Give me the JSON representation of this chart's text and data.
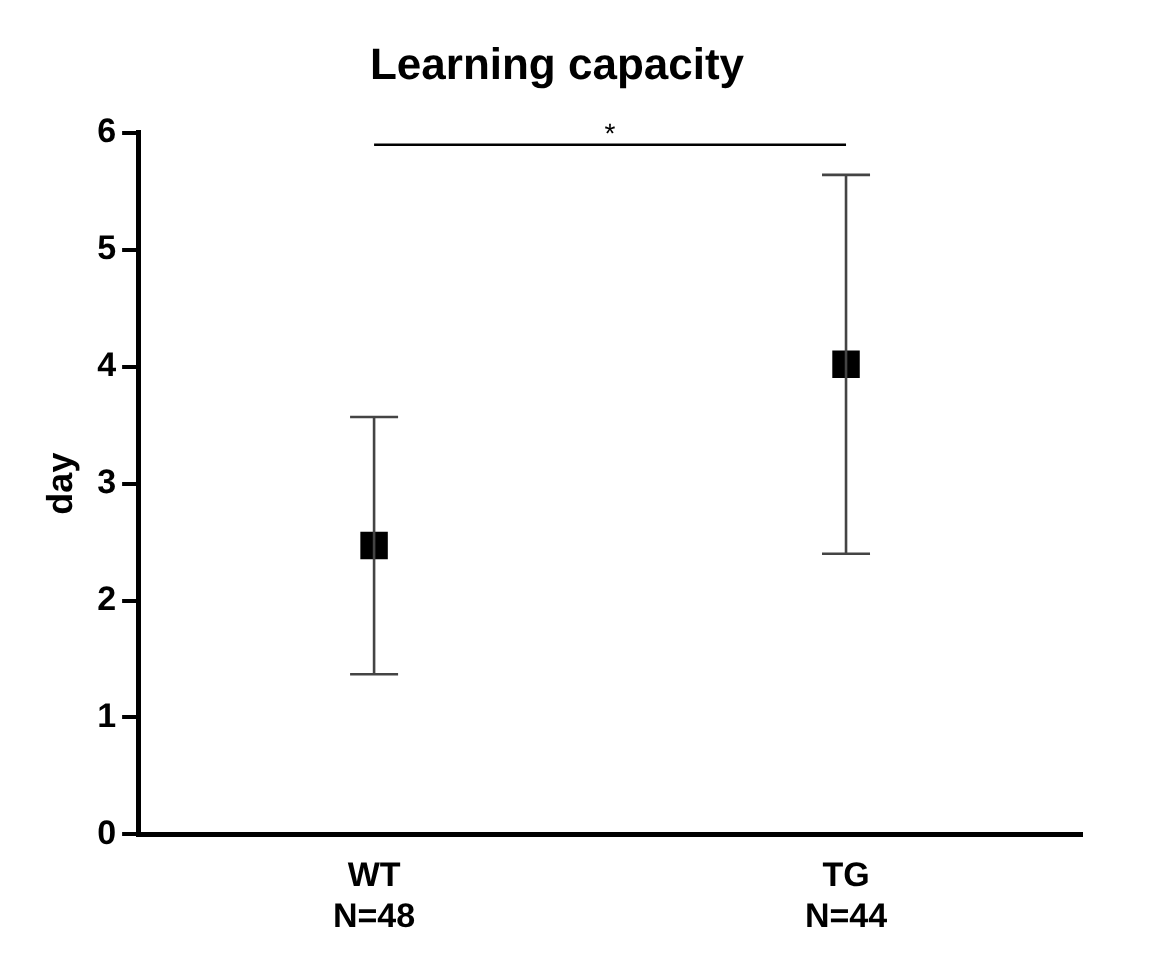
{
  "chart_data": {
    "type": "scatter",
    "title": "Learning capacity",
    "ylabel": "day",
    "categories": [
      "WT\nN=48",
      "TG\nN=44"
    ],
    "series": [
      {
        "color": "#000000",
        "values": [
          2.47,
          4.02
        ],
        "errors": [
          1.1,
          1.62
        ]
      }
    ],
    "ylim": [
      0,
      6
    ],
    "yticks": [
      0,
      1,
      2,
      3,
      4,
      5,
      6
    ],
    "grid": false,
    "legend": false,
    "marker": "square",
    "annotations": [
      "*"
    ]
  }
}
